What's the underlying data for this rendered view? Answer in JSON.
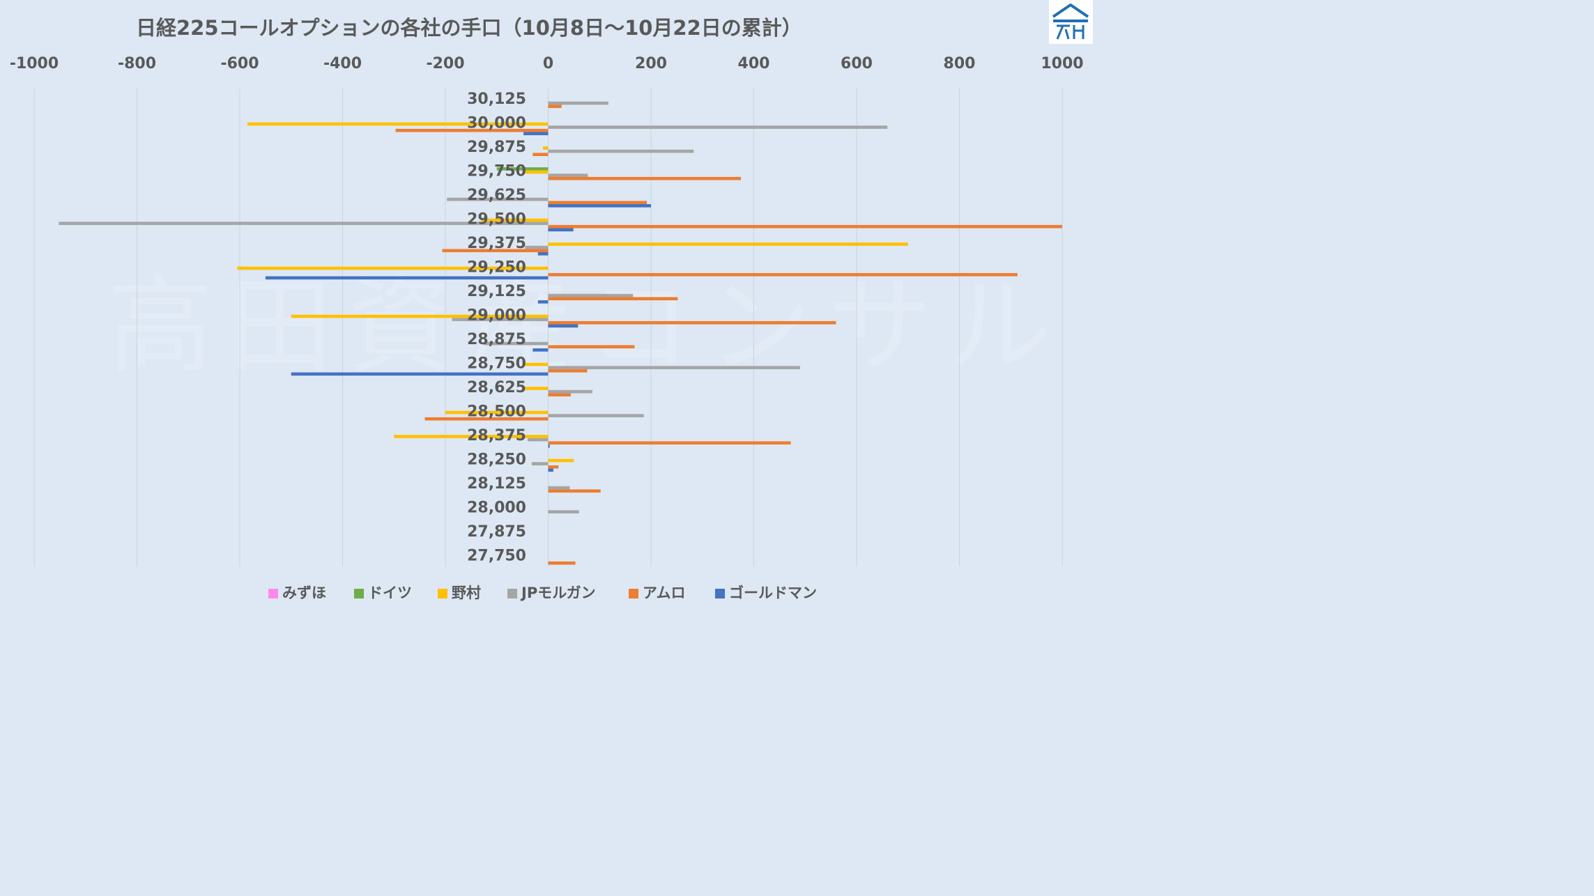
{
  "chart_data": {
    "type": "bar",
    "orientation": "horizontal",
    "title": "日経225コールオプションの各社の手口（10月8日～10月22日の累計）",
    "watermark": "高田資産コンサル",
    "xlim": [
      -1000,
      1000
    ],
    "x_ticks": [
      "-1000",
      "-800",
      "-600",
      "-400",
      "-200",
      "0",
      "200",
      "400",
      "600",
      "800",
      "1000"
    ],
    "x_tick_values": [
      -1000,
      -800,
      -600,
      -400,
      -200,
      0,
      200,
      400,
      600,
      800,
      1000
    ],
    "grid": true,
    "legend_position": "bottom",
    "categories": [
      "30,125",
      "30,000",
      "29,875",
      "29,750",
      "29,625",
      "29,500",
      "29,375",
      "29,250",
      "29,125",
      "29,000",
      "28,875",
      "28,750",
      "28,625",
      "28,500",
      "28,375",
      "28,250",
      "28,125",
      "28,000",
      "27,875",
      "27,750"
    ],
    "series": [
      {
        "name": "みずほ",
        "color": "#ff88ee",
        "values": [
          0,
          0,
          0,
          0,
          0,
          0,
          0,
          0,
          0,
          0,
          0,
          0,
          0,
          0,
          0,
          0,
          0,
          0,
          0,
          0
        ]
      },
      {
        "name": "ドイツ",
        "color": "#70ad47",
        "values": [
          0,
          0,
          0,
          -100,
          0,
          0,
          0,
          0,
          0,
          0,
          0,
          0,
          0,
          0,
          0,
          0,
          0,
          0,
          0,
          0
        ]
      },
      {
        "name": "野村",
        "color": "#ffc000",
        "values": [
          0,
          -585,
          -10,
          -45,
          0,
          -130,
          700,
          -605,
          0,
          -500,
          0,
          -45,
          -45,
          -200,
          -300,
          50,
          0,
          0,
          0,
          0
        ]
      },
      {
        "name": "JPモルガン",
        "color": "#a5a5a5",
        "values": [
          117,
          660,
          283,
          77,
          -197,
          -952,
          -45,
          0,
          165,
          -187,
          -125,
          490,
          86,
          186,
          -40,
          -32,
          42,
          60,
          0,
          0
        ]
      },
      {
        "name": "アムロ",
        "color": "#ed7d31",
        "values": [
          26,
          -297,
          -30,
          375,
          192,
          1000,
          -206,
          913,
          252,
          560,
          168,
          76,
          44,
          -240,
          472,
          20,
          102,
          0,
          0,
          53
        ]
      },
      {
        "name": "ゴールドマン",
        "color": "#4472c4",
        "values": [
          0,
          -48,
          0,
          0,
          200,
          49,
          -20,
          -550,
          -20,
          58,
          -30,
          -500,
          0,
          0,
          3,
          10,
          0,
          0,
          0,
          0
        ]
      }
    ]
  }
}
